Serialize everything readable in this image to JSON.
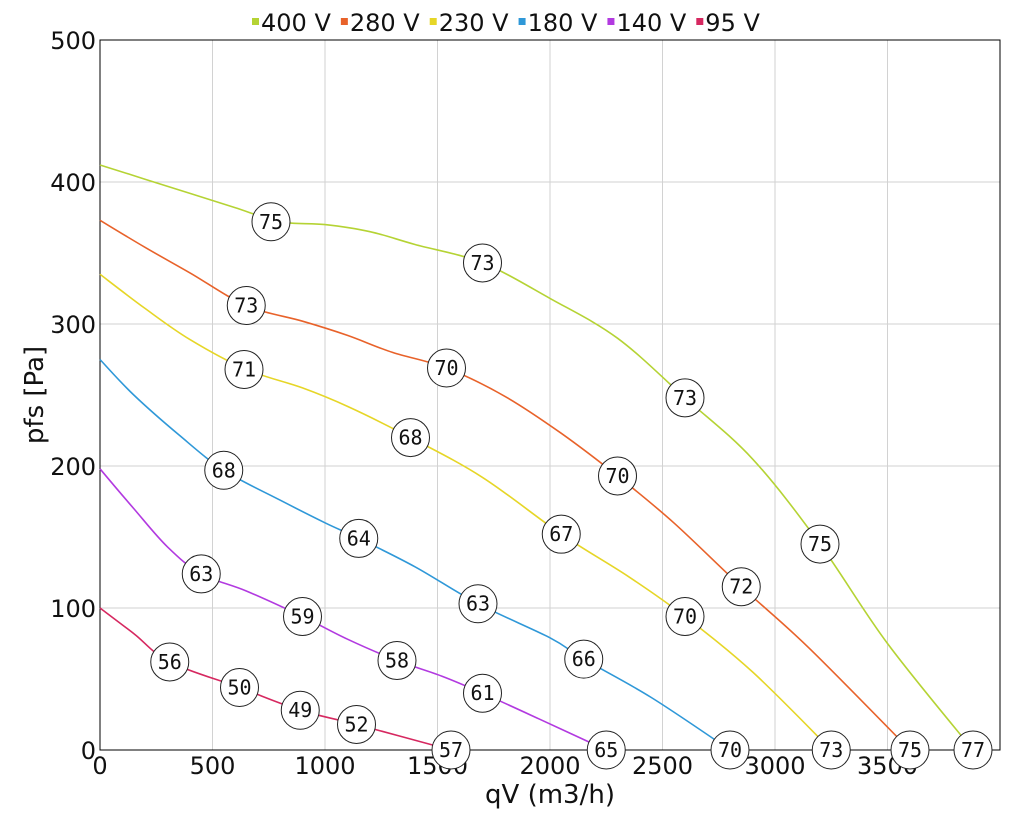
{
  "chart_data": {
    "type": "line",
    "title": "",
    "xlabel": "qV (m3/h)",
    "ylabel": "pfs [Pa]",
    "xlim": [
      0,
      4000
    ],
    "ylim": [
      0,
      500
    ],
    "x_ticks": [
      "0",
      "500",
      "1000",
      "1500",
      "2000",
      "2500",
      "3000",
      "3500"
    ],
    "y_ticks": [
      "0",
      "100",
      "200",
      "300",
      "400",
      "500"
    ],
    "grid": true,
    "legend_position": "top-center",
    "series": [
      {
        "name": "400 V",
        "color": "#b5d334",
        "points": [
          [
            0,
            412
          ],
          [
            200,
            402
          ],
          [
            400,
            392
          ],
          [
            600,
            382
          ],
          [
            800,
            372
          ],
          [
            1000,
            370
          ],
          [
            1200,
            365
          ],
          [
            1400,
            356
          ],
          [
            1700,
            343
          ],
          [
            2000,
            318
          ],
          [
            2300,
            290
          ],
          [
            2600,
            248
          ],
          [
            2900,
            205
          ],
          [
            3200,
            145
          ],
          [
            3500,
            75
          ],
          [
            3880,
            0
          ]
        ],
        "labels": [
          {
            "x": 760,
            "y": 372,
            "text": "75"
          },
          {
            "x": 1700,
            "y": 343,
            "text": "73"
          },
          {
            "x": 2600,
            "y": 248,
            "text": "73"
          },
          {
            "x": 3200,
            "y": 145,
            "text": "75"
          },
          {
            "x": 3880,
            "y": 0,
            "text": "77"
          }
        ]
      },
      {
        "name": "280 V",
        "color": "#e8622a",
        "points": [
          [
            0,
            373
          ],
          [
            200,
            354
          ],
          [
            400,
            336
          ],
          [
            650,
            313
          ],
          [
            900,
            302
          ],
          [
            1100,
            292
          ],
          [
            1300,
            280
          ],
          [
            1540,
            269
          ],
          [
            1800,
            249
          ],
          [
            2050,
            223
          ],
          [
            2300,
            193
          ],
          [
            2550,
            160
          ],
          [
            2850,
            115
          ],
          [
            3150,
            72
          ],
          [
            3600,
            0
          ]
        ],
        "labels": [
          {
            "x": 650,
            "y": 313,
            "text": "73"
          },
          {
            "x": 1540,
            "y": 269,
            "text": "70"
          },
          {
            "x": 2300,
            "y": 193,
            "text": "70"
          },
          {
            "x": 2850,
            "y": 115,
            "text": "72"
          },
          {
            "x": 3600,
            "y": 0,
            "text": "75"
          }
        ]
      },
      {
        "name": "230 V",
        "color": "#e6d627",
        "points": [
          [
            0,
            335
          ],
          [
            200,
            311
          ],
          [
            400,
            289
          ],
          [
            650,
            268
          ],
          [
            900,
            255
          ],
          [
            1100,
            242
          ],
          [
            1380,
            220
          ],
          [
            1700,
            192
          ],
          [
            2050,
            152
          ],
          [
            2350,
            122
          ],
          [
            2600,
            94
          ],
          [
            2900,
            55
          ],
          [
            3250,
            0
          ]
        ],
        "labels": [
          {
            "x": 640,
            "y": 268,
            "text": "71"
          },
          {
            "x": 1380,
            "y": 220,
            "text": "68"
          },
          {
            "x": 2050,
            "y": 152,
            "text": "67"
          },
          {
            "x": 2600,
            "y": 94,
            "text": "70"
          },
          {
            "x": 3250,
            "y": 0,
            "text": "73"
          }
        ]
      },
      {
        "name": "180 V",
        "color": "#2f98d8",
        "points": [
          [
            0,
            275
          ],
          [
            150,
            250
          ],
          [
            350,
            222
          ],
          [
            550,
            197
          ],
          [
            800,
            176
          ],
          [
            1000,
            160
          ],
          [
            1150,
            149
          ],
          [
            1400,
            129
          ],
          [
            1680,
            103
          ],
          [
            2000,
            79
          ],
          [
            2150,
            64
          ],
          [
            2450,
            37
          ],
          [
            2800,
            0
          ]
        ],
        "labels": [
          {
            "x": 550,
            "y": 197,
            "text": "68"
          },
          {
            "x": 1150,
            "y": 149,
            "text": "64"
          },
          {
            "x": 1680,
            "y": 103,
            "text": "63"
          },
          {
            "x": 2150,
            "y": 64,
            "text": "66"
          },
          {
            "x": 2800,
            "y": 0,
            "text": "70"
          }
        ]
      },
      {
        "name": "140 V",
        "color": "#b23ae0",
        "points": [
          [
            0,
            198
          ],
          [
            150,
            170
          ],
          [
            300,
            143
          ],
          [
            450,
            124
          ],
          [
            650,
            112
          ],
          [
            900,
            94
          ],
          [
            1100,
            78
          ],
          [
            1320,
            63
          ],
          [
            1520,
            52
          ],
          [
            1700,
            40
          ],
          [
            1950,
            22
          ],
          [
            2250,
            0
          ]
        ],
        "labels": [
          {
            "x": 450,
            "y": 124,
            "text": "63"
          },
          {
            "x": 900,
            "y": 94,
            "text": "59"
          },
          {
            "x": 1320,
            "y": 63,
            "text": "58"
          },
          {
            "x": 1700,
            "y": 40,
            "text": "61"
          },
          {
            "x": 2250,
            "y": 0,
            "text": "65"
          }
        ]
      },
      {
        "name": "95 V",
        "color": "#d62860",
        "points": [
          [
            0,
            100
          ],
          [
            150,
            82
          ],
          [
            310,
            62
          ],
          [
            620,
            44
          ],
          [
            890,
            28
          ],
          [
            1140,
            18
          ],
          [
            1560,
            0
          ]
        ],
        "labels": [
          {
            "x": 310,
            "y": 62,
            "text": "56"
          },
          {
            "x": 620,
            "y": 44,
            "text": "50"
          },
          {
            "x": 890,
            "y": 28,
            "text": "49"
          },
          {
            "x": 1140,
            "y": 18,
            "text": "52"
          },
          {
            "x": 1560,
            "y": 0,
            "text": "57"
          }
        ]
      }
    ]
  }
}
